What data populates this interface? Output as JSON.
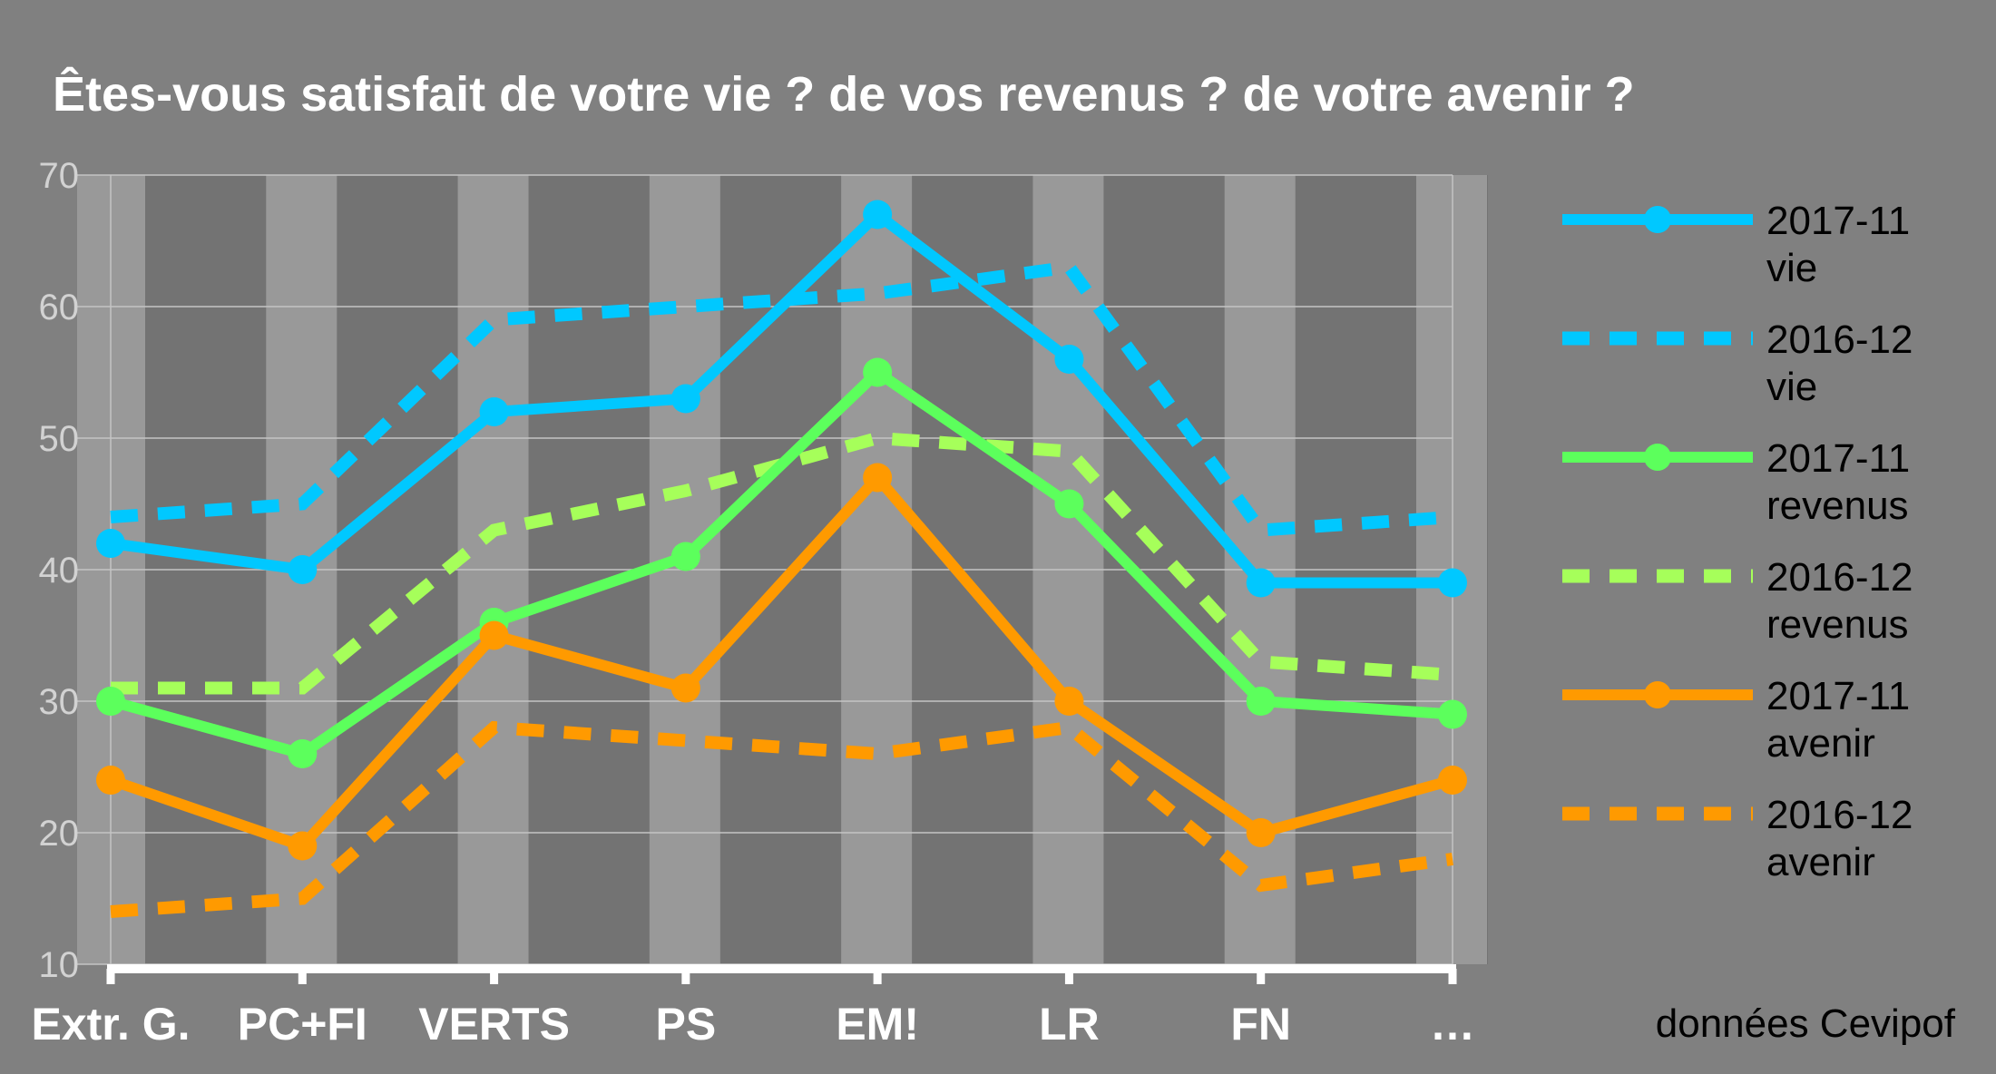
{
  "chart_data": {
    "type": "line",
    "title": "Êtes-vous satisfait de votre vie ? de vos revenus ? de votre avenir ?",
    "source_note": "données Cevipof",
    "categories": [
      "Extr. G.",
      "PC+FI",
      "VERTS",
      "PS",
      "EM!",
      "LR",
      "FN",
      "…"
    ],
    "ylim": [
      10,
      70
    ],
    "yticks": [
      10,
      20,
      30,
      40,
      50,
      60,
      70
    ],
    "grid": true,
    "legend_position": "right",
    "series": [
      {
        "name": "2017-11\nvie",
        "color": "#00c8ff",
        "dashed": false,
        "markers": true,
        "values": [
          42,
          40,
          52,
          53,
          67,
          56,
          39,
          39
        ]
      },
      {
        "name": "2016-12\nvie",
        "color": "#00c8ff",
        "dashed": true,
        "markers": false,
        "values": [
          44,
          45,
          59,
          60,
          61,
          63,
          43,
          44
        ]
      },
      {
        "name": "2017-11\nrevenus",
        "color": "#5cff5c",
        "dashed": false,
        "markers": true,
        "values": [
          30,
          26,
          36,
          41,
          55,
          45,
          30,
          29
        ]
      },
      {
        "name": "2016-12\nrevenus",
        "color": "#a6ff5a",
        "dashed": true,
        "markers": false,
        "values": [
          31,
          31,
          43,
          46,
          50,
          49,
          33,
          32
        ]
      },
      {
        "name": "2017-11\navenir",
        "color": "#ff9a00",
        "dashed": false,
        "markers": true,
        "values": [
          24,
          19,
          35,
          31,
          47,
          30,
          20,
          24
        ]
      },
      {
        "name": "2016-12\navenir",
        "color": "#ff9a00",
        "dashed": true,
        "markers": false,
        "values": [
          14,
          15,
          28,
          27,
          26,
          28,
          16,
          18
        ]
      }
    ]
  }
}
